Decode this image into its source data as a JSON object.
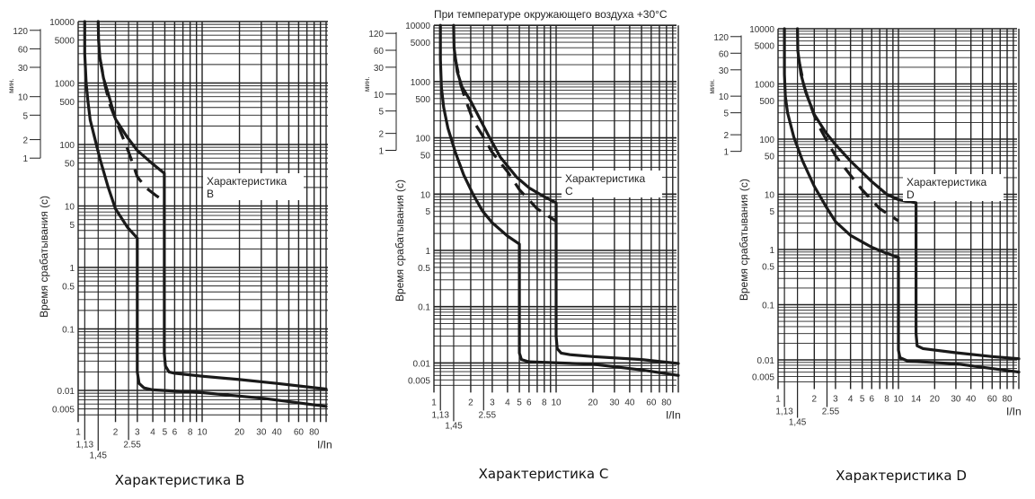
{
  "title": "При температуре окружающего воздуха +30°C",
  "colors": {
    "curve": "#1a1a1a",
    "grid": "#222222"
  },
  "chart_data": [
    {
      "type": "line",
      "caption": "Характеристика B",
      "label_line1": "Характеристика",
      "label_line2": "B",
      "xlabel": "I/In",
      "ylabel": "Время срабатывания (с)",
      "minutes_label": "мин.",
      "xscale": "log",
      "yscale": "log",
      "xlim": [
        1,
        100
      ],
      "ylim": [
        0.004,
        10000
      ],
      "x_ticks": [
        "1",
        "2",
        "3",
        "4",
        "5",
        "6",
        "8",
        "10",
        "20",
        "30",
        "40",
        "60",
        "80"
      ],
      "x_ticks_special": [
        "1,13",
        "1,45",
        "2.55"
      ],
      "y_ticks": [
        "10000",
        "5000",
        "1000",
        "500",
        "100",
        "50",
        "10",
        "5",
        "1",
        "0.5",
        "0.1",
        "0.01",
        "0.005"
      ],
      "minute_ticks": [
        "120",
        "60",
        "30",
        "10",
        "5",
        "2",
        "1"
      ],
      "grid": true,
      "series": [
        {
          "name": "upper",
          "style": "solid",
          "points": [
            [
              1.45,
              10000
            ],
            [
              1.46,
              5000
            ],
            [
              1.5,
              2500
            ],
            [
              1.6,
              1200
            ],
            [
              1.8,
              550
            ],
            [
              2,
              260
            ],
            [
              2.5,
              130
            ],
            [
              3,
              80
            ],
            [
              4,
              48
            ],
            [
              4.95,
              34
            ],
            [
              4.95,
              0.04
            ],
            [
              5.05,
              0.025
            ],
            [
              5.4,
              0.02
            ],
            [
              6,
              0.019
            ],
            [
              10,
              0.017
            ],
            [
              20,
              0.015
            ],
            [
              40,
              0.013
            ],
            [
              100,
              0.0105
            ]
          ]
        },
        {
          "name": "lower",
          "style": "solid",
          "points": [
            [
              1.13,
              10000
            ],
            [
              1.13,
              3000
            ],
            [
              1.16,
              1000
            ],
            [
              1.2,
              500
            ],
            [
              1.25,
              250
            ],
            [
              1.5,
              58
            ],
            [
              1.75,
              20
            ],
            [
              2,
              9
            ],
            [
              2.5,
              4.5
            ],
            [
              3,
              3
            ],
            [
              3,
              0.02
            ],
            [
              3.1,
              0.013
            ],
            [
              3.4,
              0.011
            ],
            [
              4,
              0.0102
            ],
            [
              10,
              0.0092
            ],
            [
              30,
              0.0075
            ],
            [
              100,
              0.0055
            ]
          ]
        },
        {
          "name": "dashed",
          "style": "dashed",
          "points": [
            [
              1.5,
              2500
            ],
            [
              1.65,
              900
            ],
            [
              1.8,
              450
            ],
            [
              2.1,
              200
            ],
            [
              2.5,
              85
            ],
            [
              3,
              30
            ],
            [
              3.5,
              20
            ],
            [
              4.2,
              15
            ],
            [
              4.95,
              12
            ]
          ]
        }
      ]
    },
    {
      "type": "line",
      "caption": "Характеристика C",
      "label_line1": "Характеристика",
      "label_line2": "C",
      "xlabel": "I/In",
      "ylabel": "Время срабатывания (с)",
      "minutes_label": "мин.",
      "xscale": "log",
      "yscale": "log",
      "xlim": [
        1,
        100
      ],
      "ylim": [
        0.004,
        10000
      ],
      "x_ticks": [
        "1",
        "2",
        "3",
        "4",
        "5",
        "6",
        "8",
        "10",
        "20",
        "30",
        "40",
        "60",
        "80"
      ],
      "x_ticks_special": [
        "1,13",
        "1,45",
        "2.55"
      ],
      "y_ticks": [
        "10000",
        "5000",
        "1000",
        "500",
        "100",
        "50",
        "10",
        "5",
        "1",
        "0.5",
        "0.1",
        "0.01",
        "0.005"
      ],
      "minute_ticks": [
        "120",
        "60",
        "30",
        "10",
        "5",
        "2",
        "1"
      ],
      "grid": true,
      "series": [
        {
          "name": "upper",
          "style": "solid",
          "points": [
            [
              1.45,
              10000
            ],
            [
              1.46,
              4000
            ],
            [
              1.55,
              1500
            ],
            [
              1.7,
              800
            ],
            [
              2,
              450
            ],
            [
              2.77,
              114
            ],
            [
              3.5,
              45
            ],
            [
              4.75,
              20
            ],
            [
              6,
              13
            ],
            [
              8,
              9
            ],
            [
              10,
              7
            ],
            [
              10,
              0.03
            ],
            [
              10.2,
              0.018
            ],
            [
              11,
              0.015
            ],
            [
              13,
              0.014
            ],
            [
              20,
              0.013
            ],
            [
              50,
              0.0115
            ],
            [
              100,
              0.0098
            ]
          ]
        },
        {
          "name": "lower",
          "style": "solid",
          "points": [
            [
              1.13,
              10000
            ],
            [
              1.13,
              2500
            ],
            [
              1.15,
              800
            ],
            [
              1.2,
              350
            ],
            [
              1.3,
              150
            ],
            [
              1.5,
              55
            ],
            [
              1.75,
              22
            ],
            [
              2.1,
              9.7
            ],
            [
              2.5,
              5
            ],
            [
              3,
              3.1
            ],
            [
              4,
              1.8
            ],
            [
              5,
              1.3
            ],
            [
              5,
              0.015
            ],
            [
              5.2,
              0.0115
            ],
            [
              6,
              0.0105
            ],
            [
              20,
              0.0095
            ],
            [
              50,
              0.0075
            ],
            [
              100,
              0.006
            ]
          ]
        },
        {
          "name": "dashed",
          "style": "dashed",
          "points": [
            [
              1.5,
              2500
            ],
            [
              1.65,
              900
            ],
            [
              1.8,
              500
            ],
            [
              2.1,
              200
            ],
            [
              2.5,
              110
            ],
            [
              3,
              55
            ],
            [
              4,
              25
            ],
            [
              5,
              12
            ],
            [
              7,
              5.5
            ],
            [
              10,
              3.3
            ]
          ]
        }
      ]
    },
    {
      "type": "line",
      "caption": "Характеристика D",
      "label_line1": "Характеристика",
      "label_line2": "D",
      "xlabel": "I/In",
      "ylabel": "Время срабатывания (с)",
      "minutes_label": "мин.",
      "xscale": "log",
      "yscale": "log",
      "xlim": [
        1,
        100
      ],
      "ylim": [
        0.004,
        10000
      ],
      "x_ticks": [
        "1",
        "2",
        "3",
        "4",
        "5",
        "6",
        "8",
        "10",
        "14",
        "20",
        "30",
        "40",
        "60",
        "80"
      ],
      "x_ticks_special": [
        "1,13",
        "1,45",
        "2.55"
      ],
      "y_ticks": [
        "10000",
        "5000",
        "1000",
        "500",
        "100",
        "50",
        "10",
        "5",
        "1",
        "0.5",
        "0.1",
        "0.01",
        "0.005"
      ],
      "minute_ticks": [
        "120",
        "60",
        "30",
        "10",
        "5",
        "2",
        "1"
      ],
      "grid": true,
      "series": [
        {
          "name": "upper",
          "style": "solid",
          "points": [
            [
              1.45,
              10000
            ],
            [
              1.46,
              4000
            ],
            [
              1.55,
              1500
            ],
            [
              1.7,
              700
            ],
            [
              2,
              280
            ],
            [
              2.5,
              130
            ],
            [
              3,
              80
            ],
            [
              4,
              40
            ],
            [
              5,
              25
            ],
            [
              6,
              17
            ],
            [
              8,
              10
            ],
            [
              10,
              8
            ],
            [
              14,
              7
            ],
            [
              14,
              0.03
            ],
            [
              14.3,
              0.018
            ],
            [
              16,
              0.016
            ],
            [
              30,
              0.0135
            ],
            [
              60,
              0.0115
            ],
            [
              100,
              0.0105
            ]
          ]
        },
        {
          "name": "lower",
          "style": "solid",
          "points": [
            [
              1.13,
              10000
            ],
            [
              1.13,
              1500
            ],
            [
              1.15,
              600
            ],
            [
              1.2,
              300
            ],
            [
              1.35,
              110
            ],
            [
              1.6,
              40
            ],
            [
              2,
              14
            ],
            [
              2.5,
              6
            ],
            [
              3,
              3.2
            ],
            [
              4,
              1.8
            ],
            [
              6,
              1.1
            ],
            [
              8,
              0.85
            ],
            [
              10,
              0.72
            ],
            [
              10,
              0.015
            ],
            [
              10.3,
              0.011
            ],
            [
              12,
              0.0095
            ],
            [
              30,
              0.0085
            ],
            [
              100,
              0.006
            ]
          ]
        },
        {
          "name": "dashed",
          "style": "dashed",
          "points": [
            [
              1.5,
              2500
            ],
            [
              1.65,
              900
            ],
            [
              1.8,
              500
            ],
            [
              2.1,
              200
            ],
            [
              2.5,
              100
            ],
            [
              3,
              50
            ],
            [
              4,
              22
            ],
            [
              5,
              12
            ],
            [
              7,
              5.5
            ],
            [
              10,
              3.3
            ]
          ]
        }
      ]
    }
  ]
}
